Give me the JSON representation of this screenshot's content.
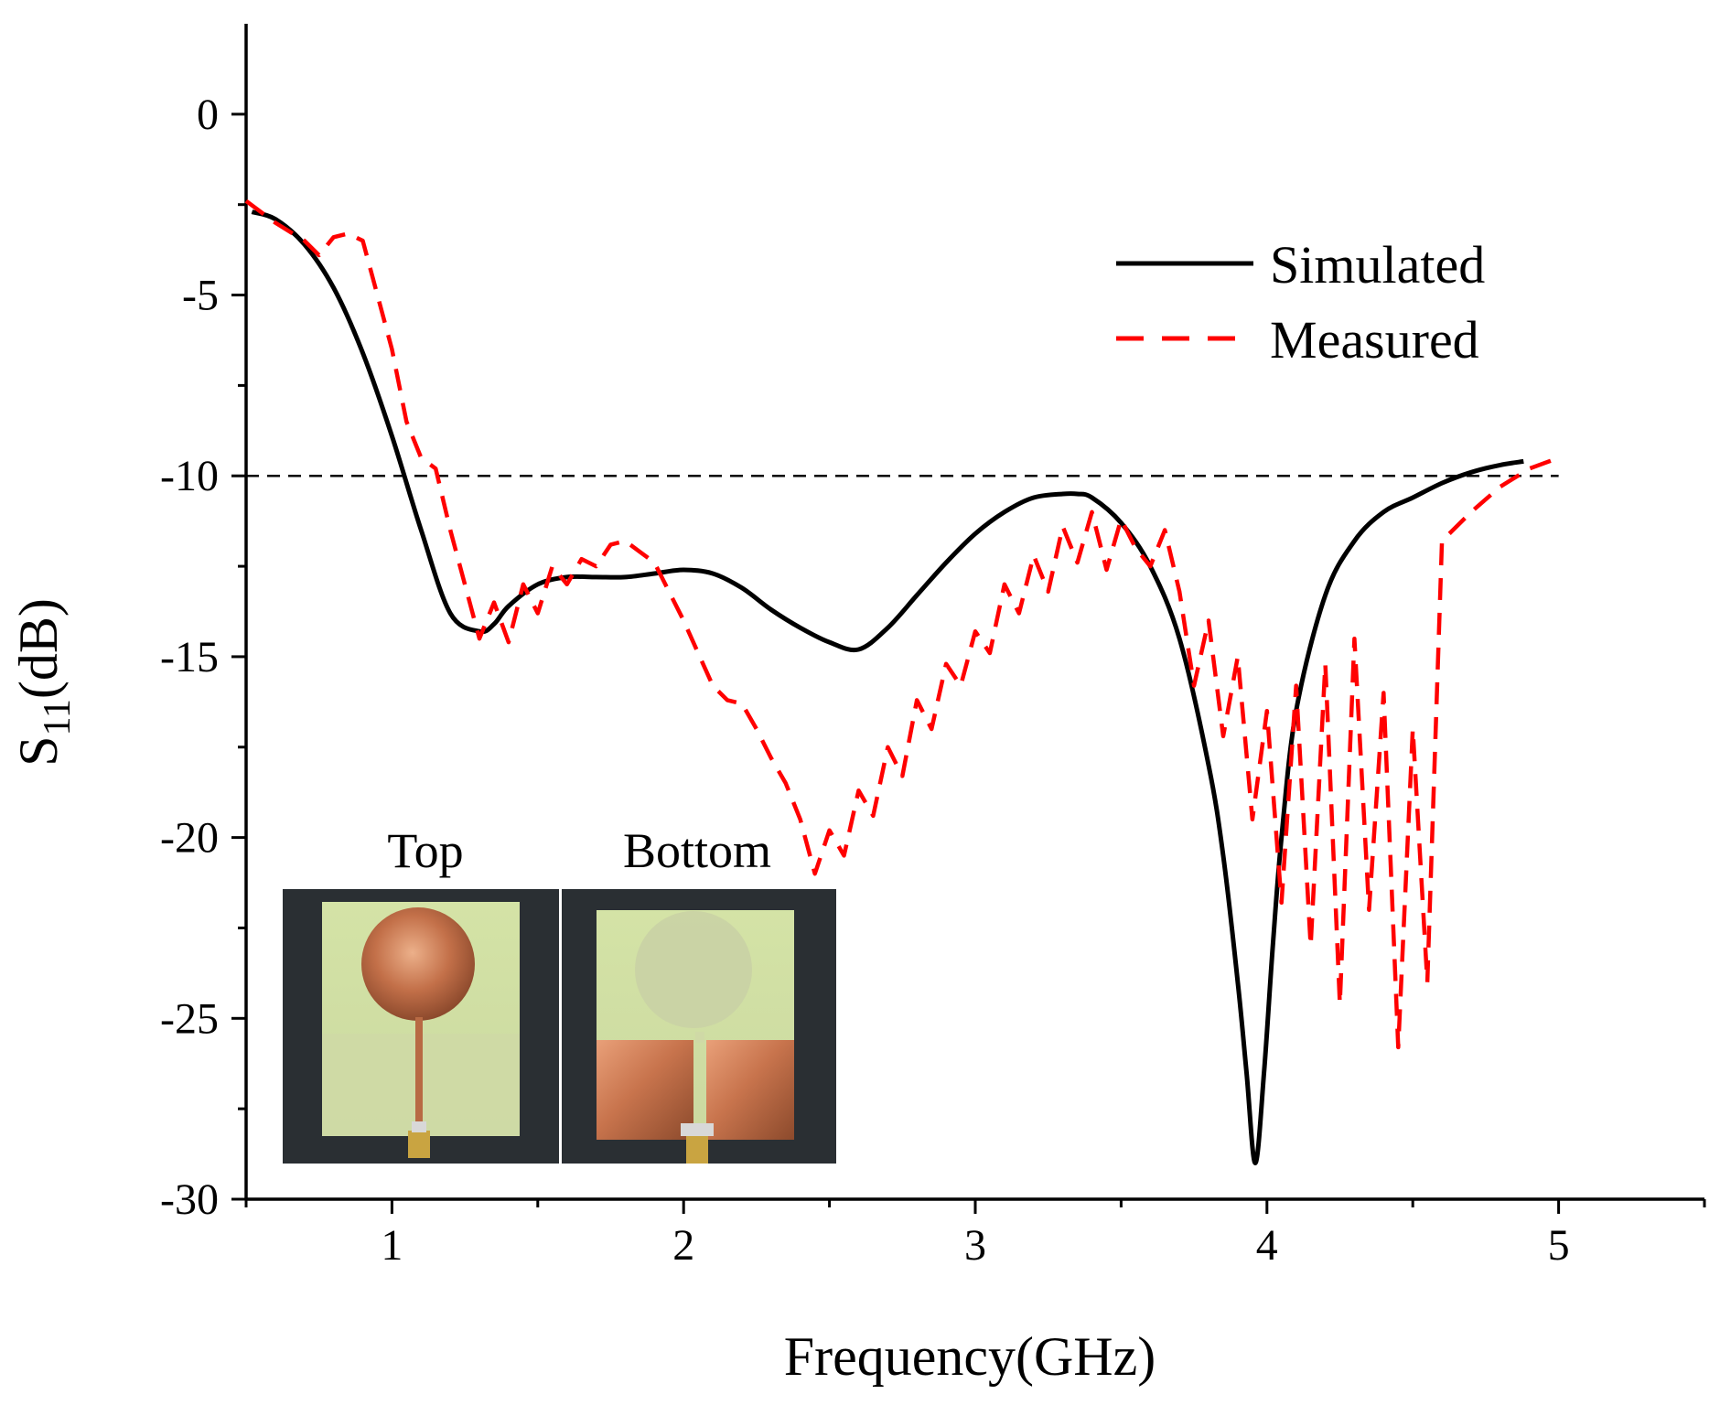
{
  "chart_data": {
    "type": "line",
    "title": "",
    "xlabel": "Frequency(GHz)",
    "ylabel_main": "S",
    "ylabel_sub": "11",
    "ylabel_unit": "(dB)",
    "xlim": [
      0.5,
      5.5
    ],
    "ylim": [
      -30,
      2.5
    ],
    "xticks": [
      1,
      2,
      3,
      4,
      5
    ],
    "yticks": [
      0,
      -5,
      -10,
      -15,
      -20,
      -25,
      -30
    ],
    "threshold": -10,
    "legend_position": "top-right",
    "series": [
      {
        "name": "Simulated",
        "color": "#000000",
        "style": "solid",
        "x": [
          0.52,
          0.6,
          0.7,
          0.8,
          0.9,
          1.0,
          1.1,
          1.2,
          1.3,
          1.35,
          1.4,
          1.5,
          1.6,
          1.7,
          1.8,
          1.9,
          2.0,
          2.1,
          2.2,
          2.3,
          2.4,
          2.5,
          2.6,
          2.7,
          2.8,
          2.9,
          3.0,
          3.1,
          3.2,
          3.3,
          3.35,
          3.4,
          3.5,
          3.6,
          3.7,
          3.8,
          3.85,
          3.9,
          3.93,
          3.96,
          3.99,
          4.02,
          4.05,
          4.1,
          4.2,
          4.3,
          4.4,
          4.5,
          4.6,
          4.7,
          4.8,
          4.88
        ],
        "y": [
          -2.7,
          -2.9,
          -3.6,
          -4.8,
          -6.6,
          -8.9,
          -11.5,
          -13.8,
          -14.3,
          -14.1,
          -13.6,
          -13.0,
          -12.8,
          -12.8,
          -12.8,
          -12.7,
          -12.6,
          -12.7,
          -13.1,
          -13.7,
          -14.2,
          -14.6,
          -14.8,
          -14.2,
          -13.3,
          -12.4,
          -11.6,
          -11.0,
          -10.6,
          -10.5,
          -10.5,
          -10.6,
          -11.3,
          -12.5,
          -14.5,
          -18.0,
          -20.5,
          -24.0,
          -26.5,
          -29.0,
          -26.5,
          -23.0,
          -20.0,
          -16.5,
          -13.3,
          -11.8,
          -11.0,
          -10.6,
          -10.2,
          -9.9,
          -9.7,
          -9.6
        ]
      },
      {
        "name": "Measured",
        "color": "#ff0000",
        "style": "dashed",
        "x": [
          0.5,
          0.6,
          0.7,
          0.75,
          0.8,
          0.85,
          0.9,
          0.95,
          1.0,
          1.05,
          1.1,
          1.15,
          1.2,
          1.25,
          1.3,
          1.35,
          1.4,
          1.45,
          1.5,
          1.55,
          1.6,
          1.65,
          1.7,
          1.75,
          1.8,
          1.85,
          1.9,
          1.95,
          2.0,
          2.05,
          2.1,
          2.15,
          2.2,
          2.25,
          2.3,
          2.35,
          2.4,
          2.45,
          2.5,
          2.55,
          2.6,
          2.65,
          2.7,
          2.75,
          2.8,
          2.85,
          2.9,
          2.95,
          3.0,
          3.05,
          3.1,
          3.15,
          3.2,
          3.25,
          3.3,
          3.35,
          3.4,
          3.45,
          3.5,
          3.55,
          3.6,
          3.65,
          3.7,
          3.75,
          3.8,
          3.85,
          3.9,
          3.95,
          4.0,
          4.05,
          4.1,
          4.15,
          4.2,
          4.25,
          4.3,
          4.35,
          4.4,
          4.45,
          4.5,
          4.55,
          4.6,
          4.7,
          4.8,
          4.9,
          5.0
        ],
        "y": [
          -2.4,
          -3.0,
          -3.5,
          -3.9,
          -3.4,
          -3.3,
          -3.5,
          -5.0,
          -6.5,
          -8.5,
          -9.5,
          -9.8,
          -11.5,
          -13.0,
          -14.5,
          -13.5,
          -14.6,
          -13.0,
          -13.8,
          -12.5,
          -13.0,
          -12.3,
          -12.5,
          -11.9,
          -11.8,
          -12.1,
          -12.4,
          -13.2,
          -14.0,
          -14.9,
          -15.8,
          -16.2,
          -16.3,
          -17.0,
          -17.8,
          -18.5,
          -19.5,
          -21.0,
          -19.8,
          -20.5,
          -18.7,
          -19.4,
          -17.5,
          -18.3,
          -16.2,
          -17.0,
          -15.2,
          -15.8,
          -14.3,
          -14.9,
          -13.0,
          -13.8,
          -12.2,
          -13.2,
          -11.4,
          -12.4,
          -11.0,
          -12.6,
          -11.2,
          -12.0,
          -12.5,
          -11.5,
          -13.2,
          -15.8,
          -14.0,
          -17.2,
          -15.0,
          -19.5,
          -16.5,
          -21.8,
          -15.8,
          -23.0,
          -15.2,
          -24.6,
          -14.5,
          -22.0,
          -16.0,
          -25.8,
          -17.0,
          -24.0,
          -11.8,
          -11.0,
          -10.3,
          -9.8,
          -9.5
        ]
      }
    ],
    "inset": {
      "labels": [
        "Top",
        "Bottom"
      ]
    }
  }
}
